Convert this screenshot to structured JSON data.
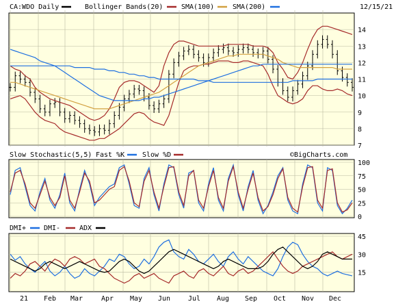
{
  "header": {
    "symbol_label": "CA:WDO Daily",
    "bollinger_label": "Bollinger Bands(20)",
    "sma100_label": "SMA(100)",
    "sma200_label": "SMA(200)",
    "date": "12/15/21"
  },
  "stoch_header": {
    "title": "Slow Stochastic(5,5)",
    "fast_label": "Fast %K",
    "slow_label": "Slow %D"
  },
  "watermark": "©BigCharts.com",
  "dmi_header": {
    "dmi_plus_label": "DMI+",
    "dmi_minus_label": "DMI-",
    "adx_label": "ADX"
  },
  "colors": {
    "background": "#ffffe0",
    "price": "#000000",
    "bollinger": "#a52a2a",
    "sma100": "#a52a2a",
    "sma200": "#d2a040",
    "blue": "#1e6fe0",
    "black": "#000000"
  },
  "chart_data": [
    {
      "type": "line",
      "panel": "price",
      "x_labels": [
        "21",
        "Feb",
        "Mar",
        "Apr",
        "May",
        "Jun",
        "Jul",
        "Aug",
        "Sep",
        "Oct",
        "Nov",
        "Dec"
      ],
      "ylim": [
        7,
        15
      ],
      "yticks": [
        7,
        8,
        9,
        10,
        11,
        12,
        13,
        14
      ],
      "series": [
        {
          "name": "CA:WDO Daily",
          "kind": "ohlc",
          "values": [
            10.5,
            11.2,
            11.0,
            10.8,
            10.2,
            9.8,
            9.2,
            9.0,
            9.5,
            9.6,
            9.0,
            8.6,
            8.8,
            8.5,
            8.3,
            8.0,
            7.9,
            7.8,
            8.0,
            7.9,
            8.3,
            8.8,
            9.3,
            9.8,
            10.1,
            10.4,
            10.3,
            9.9,
            9.4,
            9.2,
            9.5,
            9.8,
            11.3,
            12.0,
            12.4,
            12.7,
            12.8,
            12.5,
            12.3,
            12.0,
            12.3,
            12.6,
            12.8,
            12.9,
            12.7,
            12.6,
            12.8,
            12.9,
            12.8,
            12.6,
            12.5,
            12.7,
            12.2,
            11.6,
            10.8,
            10.3,
            9.9,
            10.3,
            10.7,
            11.2,
            11.8,
            12.5,
            13.1,
            13.4,
            13.1,
            12.5,
            11.5,
            11.1,
            10.8,
            10.5
          ]
        },
        {
          "name": "Bollinger Bands(20) upper",
          "values": [
            11.8,
            11.6,
            11.5,
            11.2,
            11.0,
            10.5,
            10.2,
            10.0,
            9.8,
            9.7,
            9.6,
            9.5,
            9.4,
            9.2,
            9.0,
            8.8,
            8.6,
            8.5,
            8.6,
            8.8,
            9.2,
            9.8,
            10.5,
            10.8,
            10.9,
            10.9,
            10.8,
            10.6,
            10.4,
            10.2,
            10.6,
            11.8,
            12.6,
            13.1,
            13.3,
            13.3,
            13.2,
            13.1,
            13.0,
            13.0,
            13.0,
            13.0,
            13.0,
            13.0,
            13.1,
            13.1,
            13.1,
            13.1,
            13.1,
            13.0,
            13.0,
            13.0,
            12.9,
            12.6,
            12.0,
            11.6,
            11.1,
            11.0,
            11.4,
            12.0,
            12.8,
            13.5,
            14.0,
            14.2,
            14.2,
            14.1,
            14.0,
            13.9,
            13.8,
            13.7
          ]
        },
        {
          "name": "Bollinger Bands(20) lower",
          "values": [
            9.8,
            9.9,
            10.0,
            9.8,
            9.4,
            9.0,
            8.7,
            8.5,
            8.4,
            8.3,
            8.0,
            7.8,
            7.7,
            7.6,
            7.5,
            7.4,
            7.3,
            7.3,
            7.4,
            7.4,
            7.6,
            7.8,
            8.0,
            8.3,
            8.6,
            8.9,
            9.0,
            8.9,
            8.6,
            8.4,
            8.3,
            8.2,
            8.8,
            9.8,
            10.8,
            11.5,
            11.7,
            11.8,
            11.8,
            11.9,
            11.9,
            12.0,
            12.1,
            12.1,
            12.1,
            12.0,
            12.0,
            12.1,
            12.1,
            12.0,
            11.9,
            11.8,
            11.3,
            10.6,
            10.0,
            9.8,
            9.6,
            9.5,
            9.6,
            9.8,
            10.3,
            10.6,
            10.6,
            10.4,
            10.3,
            10.3,
            10.4,
            10.3,
            10.1,
            10.0
          ]
        },
        {
          "name": "SMA(100)",
          "values": [
            10.8,
            10.8,
            10.7,
            10.6,
            10.5,
            10.4,
            10.3,
            10.2,
            10.1,
            10.0,
            9.9,
            9.8,
            9.7,
            9.6,
            9.5,
            9.4,
            9.3,
            9.2,
            9.2,
            9.2,
            9.2,
            9.3,
            9.4,
            9.5,
            9.6,
            9.7,
            9.8,
            9.9,
            10.0,
            10.1,
            10.2,
            10.4,
            10.6,
            10.8,
            11.0,
            11.2,
            11.4,
            11.6,
            11.8,
            11.9,
            12.0,
            12.1,
            12.2,
            12.3,
            12.4,
            12.4,
            12.5,
            12.5,
            12.5,
            12.5,
            12.5,
            12.5,
            12.4,
            12.3,
            12.2,
            12.0,
            11.9,
            11.8,
            11.7,
            11.7,
            11.7,
            11.7,
            11.7,
            11.7,
            11.7,
            11.7,
            11.6,
            11.6,
            11.6,
            11.6
          ]
        },
        {
          "name": "SMA(200)",
          "values": [
            12.8,
            12.7,
            12.6,
            12.5,
            12.4,
            12.3,
            12.1,
            12.0,
            11.9,
            11.8,
            11.6,
            11.4,
            11.2,
            11.0,
            10.8,
            10.6,
            10.4,
            10.2,
            10.0,
            9.9,
            9.8,
            9.7,
            9.7,
            9.7,
            9.7,
            9.7,
            9.7,
            9.8,
            9.8,
            9.9,
            9.9,
            10.0,
            10.1,
            10.2,
            10.3,
            10.4,
            10.5,
            10.6,
            10.7,
            10.8,
            10.9,
            11.0,
            11.1,
            11.2,
            11.3,
            11.4,
            11.5,
            11.6,
            11.7,
            11.8,
            11.8,
            11.9,
            11.9,
            11.9,
            11.9,
            11.9,
            11.9,
            11.9,
            11.9,
            11.9,
            11.9,
            11.9,
            11.9,
            11.9,
            11.9,
            11.9,
            11.9,
            11.9,
            11.9,
            11.9
          ]
        },
        {
          "name": "blue moving average",
          "values": [
            11.8,
            11.8,
            11.8,
            11.8,
            11.8,
            11.8,
            11.8,
            11.8,
            11.8,
            11.8,
            11.8,
            11.8,
            11.8,
            11.7,
            11.7,
            11.7,
            11.7,
            11.6,
            11.6,
            11.6,
            11.5,
            11.5,
            11.4,
            11.4,
            11.3,
            11.3,
            11.2,
            11.2,
            11.1,
            11.1,
            11.0,
            11.0,
            11.0,
            11.0,
            11.0,
            11.0,
            11.0,
            11.0,
            10.9,
            10.9,
            10.9,
            10.8,
            10.8,
            10.8,
            10.8,
            10.8,
            10.8,
            10.8,
            10.8,
            10.8,
            10.8,
            10.8,
            10.8,
            10.8,
            10.8,
            10.8,
            10.8,
            10.9,
            10.9,
            10.9,
            10.9,
            10.9,
            11.0,
            11.0,
            11.0,
            11.0,
            11.0,
            11.0,
            11.0,
            11.0
          ]
        }
      ]
    },
    {
      "type": "line",
      "panel": "stochastic",
      "title": "Slow Stochastic(5,5)",
      "ylim": [
        0,
        100
      ],
      "yticks": [
        0,
        25,
        50,
        75,
        100
      ],
      "series": [
        {
          "name": "Fast %K",
          "values": [
            40,
            85,
            90,
            55,
            20,
            10,
            45,
            70,
            30,
            15,
            40,
            80,
            25,
            10,
            50,
            85,
            60,
            20,
            35,
            45,
            55,
            60,
            90,
            95,
            60,
            20,
            15,
            70,
            90,
            40,
            10,
            60,
            95,
            90,
            40,
            15,
            80,
            85,
            25,
            10,
            60,
            90,
            30,
            10,
            70,
            95,
            40,
            10,
            55,
            85,
            30,
            5,
            20,
            45,
            75,
            90,
            30,
            10,
            5,
            60,
            95,
            90,
            25,
            10,
            90,
            85,
            20,
            5,
            15,
            30
          ]
        },
        {
          "name": "Slow %D",
          "values": [
            45,
            80,
            85,
            60,
            25,
            15,
            40,
            65,
            35,
            20,
            35,
            75,
            30,
            15,
            45,
            80,
            65,
            25,
            30,
            40,
            50,
            55,
            85,
            92,
            65,
            25,
            18,
            65,
            85,
            45,
            15,
            55,
            90,
            92,
            45,
            20,
            75,
            85,
            30,
            15,
            55,
            85,
            35,
            15,
            65,
            92,
            45,
            15,
            50,
            80,
            35,
            10,
            18,
            40,
            70,
            88,
            35,
            15,
            8,
            55,
            90,
            92,
            30,
            15,
            85,
            88,
            25,
            8,
            12,
            25
          ]
        }
      ]
    },
    {
      "type": "line",
      "panel": "dmi",
      "ylim": [
        0,
        45
      ],
      "yticks": [
        15,
        30,
        45
      ],
      "series": [
        {
          "name": "DMI+",
          "values": [
            30,
            25,
            28,
            22,
            18,
            15,
            20,
            24,
            16,
            12,
            15,
            20,
            14,
            10,
            12,
            18,
            14,
            12,
            16,
            20,
            26,
            24,
            30,
            28,
            22,
            18,
            20,
            26,
            22,
            28,
            36,
            40,
            42,
            32,
            28,
            26,
            34,
            30,
            24,
            22,
            26,
            30,
            24,
            20,
            28,
            32,
            26,
            22,
            28,
            24,
            20,
            16,
            14,
            12,
            18,
            28,
            36,
            40,
            38,
            30,
            24,
            20,
            18,
            14,
            12,
            14,
            16,
            14,
            13,
            12
          ]
        },
        {
          "name": "DMI-",
          "values": [
            10,
            14,
            12,
            16,
            22,
            24,
            20,
            16,
            22,
            26,
            24,
            20,
            26,
            28,
            26,
            22,
            24,
            26,
            20,
            18,
            14,
            10,
            8,
            6,
            8,
            12,
            14,
            10,
            12,
            14,
            10,
            8,
            6,
            12,
            14,
            16,
            12,
            10,
            16,
            18,
            14,
            12,
            16,
            20,
            14,
            12,
            16,
            18,
            14,
            16,
            20,
            24,
            28,
            32,
            26,
            20,
            16,
            14,
            16,
            20,
            22,
            24,
            26,
            28,
            30,
            32,
            28,
            26,
            28,
            30
          ]
        },
        {
          "name": "ADX",
          "values": [
            26,
            24,
            22,
            20,
            18,
            16,
            18,
            22,
            24,
            22,
            20,
            18,
            20,
            22,
            24,
            22,
            20,
            18,
            16,
            15,
            16,
            20,
            24,
            26,
            24,
            20,
            16,
            14,
            16,
            20,
            24,
            28,
            32,
            34,
            32,
            30,
            28,
            26,
            24,
            22,
            20,
            18,
            20,
            24,
            26,
            24,
            22,
            20,
            18,
            18,
            18,
            20,
            24,
            30,
            34,
            36,
            32,
            28,
            24,
            20,
            18,
            20,
            24,
            30,
            32,
            30,
            28,
            26,
            26,
            26
          ]
        }
      ]
    }
  ]
}
